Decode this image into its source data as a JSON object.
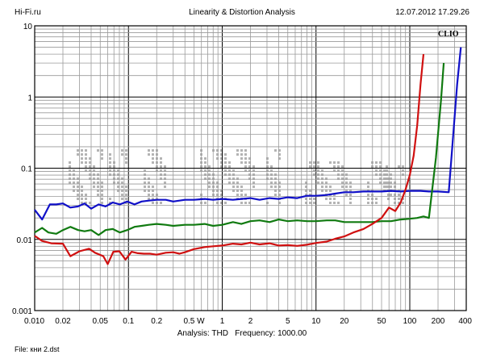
{
  "header": {
    "site": "Hi-Fi.ru",
    "title": "Linearity & Distortion Analysis",
    "datetime": "12.07.2012 17.29.26"
  },
  "brand": "CLIO",
  "footer": {
    "analysis_label": "Analysis: THD",
    "frequency_label": "Frequency: 1000.00",
    "file": "File: кни 2.dst"
  },
  "colors": {
    "background": "#ffffff",
    "grid_major": "#000000",
    "grid_minor": "#9a9a9a",
    "watermark": "#b4b4b4"
  },
  "chart_data": {
    "type": "line",
    "x_scale": "log",
    "y_scale": "log",
    "xlim": [
      0.01,
      400
    ],
    "ylim": [
      0.001,
      10
    ],
    "grid": true,
    "x_ticks": [
      {
        "value": 0.01,
        "label": "0.010"
      },
      {
        "value": 0.02,
        "label": "0.02"
      },
      {
        "value": 0.05,
        "label": "0.05"
      },
      {
        "value": 0.1,
        "label": "0.1"
      },
      {
        "value": 0.2,
        "label": "0.2"
      },
      {
        "value": 0.5,
        "label": "0.5 W"
      },
      {
        "value": 1,
        "label": "1"
      },
      {
        "value": 2,
        "label": "2"
      },
      {
        "value": 5,
        "label": "5"
      },
      {
        "value": 10,
        "label": "10"
      },
      {
        "value": 20,
        "label": "20"
      },
      {
        "value": 50,
        "label": "50"
      },
      {
        "value": 100,
        "label": "100"
      },
      {
        "value": 200,
        "label": "200"
      },
      {
        "value": 400,
        "label": "400"
      }
    ],
    "y_ticks": [
      {
        "value": 10,
        "label": "10"
      },
      {
        "value": 1,
        "label": "1"
      },
      {
        "value": 0.1,
        "label": "0.1"
      },
      {
        "value": 0.01,
        "label": "0.01"
      },
      {
        "value": 0.001,
        "label": "0.001"
      }
    ],
    "series": [
      {
        "color": "#1010c8",
        "points": [
          [
            0.01,
            0.026
          ],
          [
            0.012,
            0.019
          ],
          [
            0.0145,
            0.031
          ],
          [
            0.017,
            0.031
          ],
          [
            0.02,
            0.032
          ],
          [
            0.024,
            0.028
          ],
          [
            0.029,
            0.029
          ],
          [
            0.034,
            0.032
          ],
          [
            0.04,
            0.027
          ],
          [
            0.048,
            0.031
          ],
          [
            0.057,
            0.029
          ],
          [
            0.068,
            0.033
          ],
          [
            0.081,
            0.031
          ],
          [
            0.097,
            0.034
          ],
          [
            0.116,
            0.031
          ],
          [
            0.138,
            0.034
          ],
          [
            0.165,
            0.035
          ],
          [
            0.2,
            0.036
          ],
          [
            0.25,
            0.036
          ],
          [
            0.3,
            0.034
          ],
          [
            0.4,
            0.036
          ],
          [
            0.5,
            0.036
          ],
          [
            0.65,
            0.037
          ],
          [
            0.8,
            0.036
          ],
          [
            1,
            0.037
          ],
          [
            1.3,
            0.036
          ],
          [
            1.6,
            0.037
          ],
          [
            2,
            0.038
          ],
          [
            2.5,
            0.036
          ],
          [
            3.2,
            0.038
          ],
          [
            4,
            0.037
          ],
          [
            5,
            0.039
          ],
          [
            6.3,
            0.038
          ],
          [
            8,
            0.041
          ],
          [
            10,
            0.041
          ],
          [
            13,
            0.042
          ],
          [
            16,
            0.044
          ],
          [
            20,
            0.046
          ],
          [
            25,
            0.046
          ],
          [
            32,
            0.047
          ],
          [
            40,
            0.047
          ],
          [
            50,
            0.047
          ],
          [
            63,
            0.048
          ],
          [
            80,
            0.047
          ],
          [
            100,
            0.048
          ],
          [
            130,
            0.048
          ],
          [
            160,
            0.047
          ],
          [
            200,
            0.047
          ],
          [
            260,
            0.046
          ],
          [
            320,
            1.5
          ],
          [
            350,
            5
          ]
        ]
      },
      {
        "color": "#107a10",
        "points": [
          [
            0.01,
            0.0125
          ],
          [
            0.012,
            0.0145
          ],
          [
            0.014,
            0.0125
          ],
          [
            0.017,
            0.012
          ],
          [
            0.02,
            0.0135
          ],
          [
            0.024,
            0.015
          ],
          [
            0.029,
            0.0135
          ],
          [
            0.034,
            0.013
          ],
          [
            0.04,
            0.0135
          ],
          [
            0.048,
            0.0115
          ],
          [
            0.057,
            0.0135
          ],
          [
            0.068,
            0.014
          ],
          [
            0.081,
            0.0125
          ],
          [
            0.097,
            0.0135
          ],
          [
            0.116,
            0.015
          ],
          [
            0.138,
            0.0155
          ],
          [
            0.165,
            0.016
          ],
          [
            0.2,
            0.0165
          ],
          [
            0.25,
            0.016
          ],
          [
            0.3,
            0.0155
          ],
          [
            0.4,
            0.016
          ],
          [
            0.5,
            0.016
          ],
          [
            0.65,
            0.0165
          ],
          [
            0.8,
            0.0155
          ],
          [
            1,
            0.016
          ],
          [
            1.3,
            0.0175
          ],
          [
            1.6,
            0.0165
          ],
          [
            2,
            0.018
          ],
          [
            2.5,
            0.0185
          ],
          [
            3.2,
            0.0175
          ],
          [
            4,
            0.019
          ],
          [
            5,
            0.018
          ],
          [
            6.3,
            0.0185
          ],
          [
            8,
            0.018
          ],
          [
            10,
            0.018
          ],
          [
            13,
            0.0185
          ],
          [
            16,
            0.0185
          ],
          [
            20,
            0.0175
          ],
          [
            25,
            0.0175
          ],
          [
            32,
            0.0175
          ],
          [
            40,
            0.0175
          ],
          [
            50,
            0.018
          ],
          [
            63,
            0.018
          ],
          [
            80,
            0.019
          ],
          [
            100,
            0.0195
          ],
          [
            120,
            0.02
          ],
          [
            140,
            0.021
          ],
          [
            160,
            0.02
          ],
          [
            190,
            0.14
          ],
          [
            215,
            0.9
          ],
          [
            230,
            3
          ]
        ]
      },
      {
        "color": "#d01010",
        "points": [
          [
            0.01,
            0.0112
          ],
          [
            0.012,
            0.0095
          ],
          [
            0.015,
            0.0088
          ],
          [
            0.02,
            0.0087
          ],
          [
            0.024,
            0.0058
          ],
          [
            0.03,
            0.0068
          ],
          [
            0.038,
            0.0074
          ],
          [
            0.044,
            0.0065
          ],
          [
            0.054,
            0.0058
          ],
          [
            0.06,
            0.0045
          ],
          [
            0.069,
            0.0067
          ],
          [
            0.08,
            0.0068
          ],
          [
            0.093,
            0.0052
          ],
          [
            0.108,
            0.0067
          ],
          [
            0.126,
            0.0064
          ],
          [
            0.146,
            0.0063
          ],
          [
            0.17,
            0.0063
          ],
          [
            0.2,
            0.0061
          ],
          [
            0.25,
            0.0065
          ],
          [
            0.3,
            0.0066
          ],
          [
            0.35,
            0.0063
          ],
          [
            0.4,
            0.0066
          ],
          [
            0.5,
            0.0073
          ],
          [
            0.65,
            0.0078
          ],
          [
            0.8,
            0.008
          ],
          [
            1,
            0.0082
          ],
          [
            1.3,
            0.0087
          ],
          [
            1.6,
            0.0085
          ],
          [
            2,
            0.009
          ],
          [
            2.5,
            0.0085
          ],
          [
            3.2,
            0.0088
          ],
          [
            4,
            0.0082
          ],
          [
            5,
            0.0083
          ],
          [
            6.3,
            0.0081
          ],
          [
            8,
            0.0084
          ],
          [
            10,
            0.0089
          ],
          [
            13,
            0.0093
          ],
          [
            16,
            0.0102
          ],
          [
            20,
            0.011
          ],
          [
            25,
            0.0125
          ],
          [
            32,
            0.014
          ],
          [
            40,
            0.0165
          ],
          [
            50,
            0.02
          ],
          [
            60,
            0.028
          ],
          [
            70,
            0.025
          ],
          [
            80,
            0.033
          ],
          [
            90,
            0.05
          ],
          [
            100,
            0.08
          ],
          [
            110,
            0.15
          ],
          [
            120,
            0.4
          ],
          [
            130,
            1.5
          ],
          [
            140,
            4
          ]
        ]
      }
    ]
  }
}
